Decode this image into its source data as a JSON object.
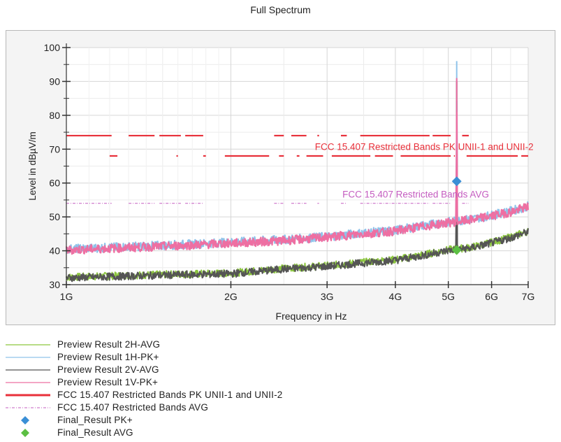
{
  "chart_data": {
    "type": "line",
    "title": "Full Spectrum",
    "xlabel": "Frequency in Hz",
    "ylabel": "Level in dBµV/m",
    "xscale": "log",
    "xlim": [
      1000000000,
      7000000000
    ],
    "ylim": [
      30,
      100
    ],
    "x_ticks": [
      {
        "value": 1000000000,
        "label": "1G"
      },
      {
        "value": 2000000000,
        "label": "2G"
      },
      {
        "value": 3000000000,
        "label": "3G"
      },
      {
        "value": 4000000000,
        "label": "4G"
      },
      {
        "value": 5000000000,
        "label": "5G"
      },
      {
        "value": 6000000000,
        "label": "6G"
      },
      {
        "value": 7000000000,
        "label": "7G"
      }
    ],
    "y_ticks": [
      30,
      40,
      50,
      60,
      70,
      80,
      90,
      100
    ],
    "grid": true,
    "legend_position": "bottom-left",
    "series": [
      {
        "name": "Preview Result 2H-AVG",
        "kind": "trace",
        "color": "#8cc63f",
        "x": [
          1000000000.0,
          1500000000.0,
          2000000000.0,
          2500000000.0,
          3000000000.0,
          3500000000.0,
          4000000000.0,
          4500000000.0,
          5000000000.0,
          5500000000.0,
          6000000000.0,
          6500000000.0,
          7000000000.0
        ],
        "values": [
          32.2,
          33.0,
          33.4,
          34.8,
          35.6,
          36.6,
          37.4,
          38.8,
          40.3,
          41.0,
          42.5,
          44.0,
          45.8
        ],
        "peak": {
          "x": 5180000000,
          "y": 40
        }
      },
      {
        "name": "Preview Result 1H-PK+",
        "kind": "trace",
        "color": "#8fc3ea",
        "x": [
          1000000000.0,
          1500000000.0,
          2000000000.0,
          2500000000.0,
          3000000000.0,
          3500000000.0,
          4000000000.0,
          4500000000.0,
          5000000000.0,
          5500000000.0,
          6000000000.0,
          6500000000.0,
          7000000000.0
        ],
        "values": [
          40.5,
          41.6,
          42.5,
          43.3,
          44.2,
          45.3,
          46.0,
          47.5,
          48.5,
          49.3,
          50.5,
          51.7,
          53.2
        ],
        "peak": {
          "x": 5180000000,
          "y": 96
        }
      },
      {
        "name": "Preview Result 2V-AVG",
        "kind": "trace",
        "color": "#555555",
        "x": [
          1000000000.0,
          1500000000.0,
          2000000000.0,
          2500000000.0,
          3000000000.0,
          3500000000.0,
          4000000000.0,
          4500000000.0,
          5000000000.0,
          5500000000.0,
          6000000000.0,
          6500000000.0,
          7000000000.0
        ],
        "values": [
          32.0,
          32.8,
          33.2,
          34.6,
          35.4,
          36.4,
          37.2,
          38.6,
          40.1,
          40.8,
          42.3,
          43.8,
          45.6
        ],
        "peak": {
          "x": 5180000000,
          "y": 90
        }
      },
      {
        "name": "Preview Result 1V-PK+",
        "kind": "trace",
        "color": "#ee6fa2",
        "x": [
          1000000000.0,
          1500000000.0,
          2000000000.0,
          2500000000.0,
          3000000000.0,
          3500000000.0,
          4000000000.0,
          4500000000.0,
          5000000000.0,
          5500000000.0,
          6000000000.0,
          6500000000.0,
          7000000000.0
        ],
        "values": [
          40.2,
          41.3,
          42.2,
          43.0,
          44.0,
          45.0,
          45.8,
          47.2,
          48.3,
          49.1,
          50.3,
          51.4,
          53.0
        ],
        "peak": {
          "x": 5180000000,
          "y": 91
        }
      },
      {
        "name": "FCC 15.407 Restricted Bands PK UNII-1 and UNII-2",
        "kind": "limit",
        "color": "#e8303a",
        "upper_level": 74,
        "lower_level": 68,
        "upper_segments": [
          [
            1000000000.0,
            1210000000.0
          ],
          [
            1300000000.0,
            1450000000.0
          ],
          [
            1480000000.0,
            1620000000.0
          ],
          [
            1650000000.0,
            1780000000.0
          ],
          [
            2400000000.0,
            2500000000.0
          ],
          [
            2580000000.0,
            2750000000.0
          ],
          [
            2880000000.0,
            2900000000.0
          ],
          [
            3180000000.0,
            3260000000.0
          ],
          [
            3450000000.0,
            4620000000.0
          ],
          [
            4680000000.0,
            5050000000.0
          ],
          [
            5300000000.0,
            5450000000.0
          ]
        ],
        "lower_segments": [
          [
            1200000000.0,
            1240000000.0
          ],
          [
            1590000000.0,
            1600000000.0
          ],
          [
            1780000000.0,
            1800000000.0
          ],
          [
            1950000000.0,
            2350000000.0
          ],
          [
            2450000000.0,
            2500000000.0
          ],
          [
            2640000000.0,
            2670000000.0
          ],
          [
            2750000000.0,
            2950000000.0
          ],
          [
            3060000000.0,
            3600000000.0
          ],
          [
            3670000000.0,
            3960000000.0
          ],
          [
            4090000000.0,
            5050000000.0
          ],
          [
            5120000000.0,
            5140000000.0
          ],
          [
            5400000000.0,
            6700000000.0
          ],
          [
            6800000000.0,
            7000000000.0
          ]
        ],
        "label": "FCC 15.407 Restricted Bands PK UNII-1 and UNII-2",
        "label_anchor": {
          "x": 2850000000.0,
          "y": 69.7
        }
      },
      {
        "name": "FCC 15.407 Restricted Bands AVG",
        "kind": "limit",
        "color": "#c45cc0",
        "level": 54,
        "segments": [
          [
            1000000000.0,
            1210000000.0
          ],
          [
            1300000000.0,
            1450000000.0
          ],
          [
            1480000000.0,
            1620000000.0
          ],
          [
            1650000000.0,
            1780000000.0
          ],
          [
            2400000000.0,
            2500000000.0
          ],
          [
            2580000000.0,
            2750000000.0
          ],
          [
            2880000000.0,
            2900000000.0
          ],
          [
            3180000000.0,
            3260000000.0
          ],
          [
            3450000000.0,
            4620000000.0
          ],
          [
            4680000000.0,
            5050000000.0
          ],
          [
            5300000000.0,
            5450000000.0
          ]
        ],
        "label": "FCC 15.407 Restricted Bands AVG",
        "label_anchor": {
          "x": 3200000000.0,
          "y": 55.7
        }
      },
      {
        "name": "Final_Result PK+",
        "kind": "marker",
        "color": "#3a8fd6",
        "points": [
          {
            "x": 5180000000,
            "y": 60.5
          }
        ]
      },
      {
        "name": "Final_Result AVG",
        "kind": "marker",
        "color": "#5cbf43",
        "points": [
          {
            "x": 5180000000,
            "y": 40.2
          }
        ]
      }
    ]
  },
  "legend": [
    {
      "label": "Preview Result 2H-AVG",
      "style": "line-thin",
      "color": "#8cc63f"
    },
    {
      "label": "Preview Result 1H-PK+",
      "style": "line-thin",
      "color": "#8fc3ea"
    },
    {
      "label": "Preview Result 2V-AVG",
      "style": "line-thin",
      "color": "#555555"
    },
    {
      "label": "Preview Result 1V-PK+",
      "style": "line-thin",
      "color": "#ee6fa2"
    },
    {
      "label": "FCC 15.407 Restricted Bands PK UNII-1 and UNII-2",
      "style": "line-thick",
      "color": "#e8303a"
    },
    {
      "label": "FCC 15.407 Restricted Bands AVG",
      "style": "line-dashdot",
      "color": "#c45cc0"
    },
    {
      "label": "Final_Result PK+",
      "style": "diamond",
      "color": "#3a8fd6"
    },
    {
      "label": "Final_Result AVG",
      "style": "diamond",
      "color": "#5cbf43"
    }
  ]
}
